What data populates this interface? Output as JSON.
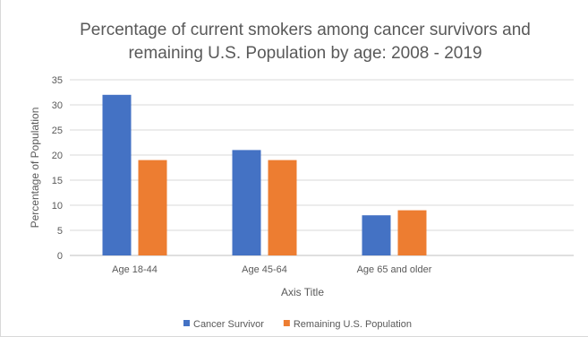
{
  "chart_data": {
    "type": "bar",
    "title_lines": [
      "Percentage of current smokers among cancer survivors and",
      "remaining U.S. Population by age: 2008 - 2019"
    ],
    "xlabel": "Axis Title",
    "ylabel": "Percentage of Population",
    "categories": [
      "Age 18-44",
      "Age 45-64",
      "Age 65 and older"
    ],
    "series": [
      {
        "name": "Cancer Survivor",
        "values": [
          32,
          21,
          8
        ],
        "color": "#4472c4"
      },
      {
        "name": "Remaining U.S. Population",
        "values": [
          19,
          19,
          9
        ],
        "color": "#ed7d31"
      }
    ],
    "ylim": [
      0,
      35
    ],
    "yticks": [
      0,
      5,
      10,
      15,
      20,
      25,
      30,
      35
    ],
    "grid": true,
    "legend_position": "bottom"
  }
}
